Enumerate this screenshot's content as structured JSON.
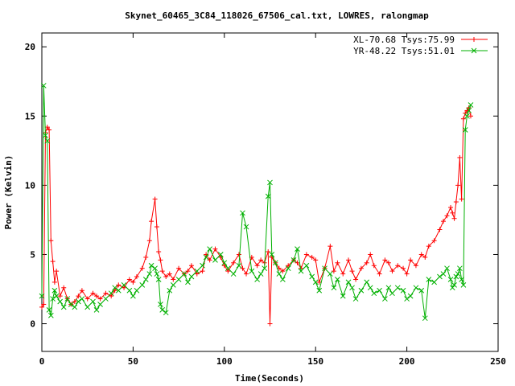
{
  "chart_data": {
    "type": "line",
    "title": "Skynet_60465_3C84_118026_67506_cal.txt, LOWRES, ralongmap",
    "xlabel": "Time(Seconds)",
    "ylabel": "Power (Kelvin)",
    "xlim": [
      0,
      250
    ],
    "ylim": [
      -2,
      21
    ],
    "x_ticks": [
      0,
      50,
      100,
      150,
      200,
      250
    ],
    "y_ticks": [
      0,
      5,
      10,
      15,
      20
    ],
    "grid": false,
    "legend_position": "top-right",
    "series": [
      {
        "name": "XL-70.68 Tsys:75.99",
        "color": "#ff0000",
        "marker": "plus",
        "x": [
          0,
          1,
          2,
          3,
          4,
          5,
          6,
          7,
          8,
          10,
          12,
          14,
          16,
          18,
          20,
          22,
          25,
          28,
          30,
          32,
          35,
          38,
          40,
          42,
          45,
          48,
          50,
          52,
          55,
          57,
          59,
          60,
          62,
          63,
          64,
          65,
          66,
          68,
          70,
          72,
          75,
          78,
          80,
          82,
          85,
          88,
          90,
          92,
          95,
          98,
          100,
          102,
          105,
          108,
          110,
          112,
          115,
          118,
          120,
          122,
          124,
          125,
          126,
          128,
          130,
          132,
          135,
          138,
          140,
          142,
          145,
          148,
          150,
          152,
          155,
          158,
          160,
          162,
          165,
          168,
          170,
          172,
          175,
          178,
          180,
          182,
          185,
          188,
          190,
          192,
          195,
          198,
          200,
          202,
          205,
          208,
          210,
          212,
          215,
          218,
          220,
          222,
          224,
          225,
          226,
          227,
          228,
          229,
          230,
          231,
          232,
          233,
          234,
          235
        ],
        "values": [
          1.2,
          1.4,
          13.8,
          14.2,
          14.0,
          6.0,
          4.5,
          3.0,
          3.8,
          2.0,
          2.6,
          1.8,
          1.4,
          1.6,
          2.0,
          2.4,
          1.8,
          2.2,
          2.0,
          1.8,
          2.2,
          2.0,
          2.4,
          2.8,
          2.6,
          3.2,
          3.0,
          3.4,
          4.0,
          4.8,
          6.0,
          7.4,
          9.0,
          7.0,
          5.2,
          4.6,
          3.8,
          3.4,
          3.6,
          3.2,
          4.0,
          3.6,
          3.8,
          4.2,
          3.6,
          3.8,
          5.0,
          4.6,
          5.4,
          4.8,
          4.2,
          3.8,
          4.4,
          5.0,
          4.0,
          3.6,
          4.8,
          4.2,
          4.6,
          4.4,
          5.2,
          0.0,
          4.8,
          4.4,
          4.0,
          3.8,
          4.2,
          4.6,
          4.4,
          4.0,
          5.0,
          4.8,
          4.6,
          3.0,
          4.0,
          5.6,
          3.8,
          4.4,
          3.6,
          4.6,
          3.8,
          3.2,
          4.0,
          4.4,
          5.0,
          4.2,
          3.6,
          4.6,
          4.4,
          3.8,
          4.2,
          4.0,
          3.6,
          4.6,
          4.2,
          5.0,
          4.8,
          5.6,
          6.0,
          6.8,
          7.4,
          7.8,
          8.4,
          8.0,
          7.6,
          8.8,
          10.0,
          12.0,
          9.0,
          14.8,
          15.2,
          15.4,
          15.6,
          15.0
        ]
      },
      {
        "name": "YR-48.22 Tsys:51.01",
        "color": "#00b000",
        "marker": "cross",
        "x": [
          0,
          1,
          2,
          3,
          4,
          5,
          6,
          7,
          8,
          10,
          12,
          14,
          16,
          18,
          20,
          22,
          25,
          28,
          30,
          32,
          35,
          38,
          40,
          42,
          45,
          48,
          50,
          52,
          55,
          57,
          59,
          60,
          62,
          63,
          64,
          65,
          66,
          68,
          70,
          72,
          75,
          78,
          80,
          82,
          85,
          88,
          90,
          92,
          95,
          98,
          100,
          102,
          105,
          108,
          110,
          112,
          115,
          118,
          120,
          122,
          124,
          125,
          126,
          128,
          130,
          132,
          135,
          138,
          140,
          142,
          145,
          148,
          150,
          152,
          155,
          158,
          160,
          162,
          165,
          168,
          170,
          172,
          175,
          178,
          180,
          182,
          185,
          188,
          190,
          192,
          195,
          198,
          200,
          202,
          205,
          208,
          210,
          212,
          215,
          218,
          220,
          222,
          224,
          225,
          226,
          227,
          228,
          229,
          230,
          231,
          232,
          233,
          234,
          235
        ],
        "values": [
          2.0,
          17.2,
          13.6,
          13.2,
          1.0,
          0.6,
          1.8,
          2.4,
          2.0,
          1.6,
          1.2,
          1.8,
          1.4,
          1.2,
          1.6,
          1.8,
          1.2,
          1.6,
          1.0,
          1.4,
          1.8,
          2.2,
          2.6,
          2.4,
          2.8,
          2.4,
          2.0,
          2.4,
          2.8,
          3.2,
          3.6,
          4.2,
          4.0,
          3.6,
          3.2,
          1.4,
          1.0,
          0.8,
          2.4,
          2.8,
          3.2,
          3.6,
          3.0,
          3.4,
          3.8,
          4.2,
          4.8,
          5.4,
          4.6,
          5.0,
          4.4,
          4.0,
          3.6,
          4.2,
          8.0,
          7.0,
          3.8,
          3.2,
          3.6,
          4.0,
          9.2,
          10.2,
          5.0,
          4.4,
          3.6,
          3.2,
          4.0,
          4.6,
          5.4,
          3.8,
          4.2,
          3.4,
          3.0,
          2.4,
          4.0,
          3.6,
          2.6,
          3.2,
          2.0,
          3.0,
          2.6,
          1.8,
          2.4,
          3.0,
          2.6,
          2.2,
          2.4,
          1.8,
          2.6,
          2.2,
          2.6,
          2.4,
          1.8,
          2.0,
          2.6,
          2.4,
          0.4,
          3.2,
          3.0,
          3.4,
          3.6,
          4.0,
          3.2,
          2.6,
          2.8,
          3.4,
          3.6,
          4.0,
          3.2,
          2.8,
          14.0,
          15.0,
          15.4,
          15.8
        ]
      }
    ]
  }
}
